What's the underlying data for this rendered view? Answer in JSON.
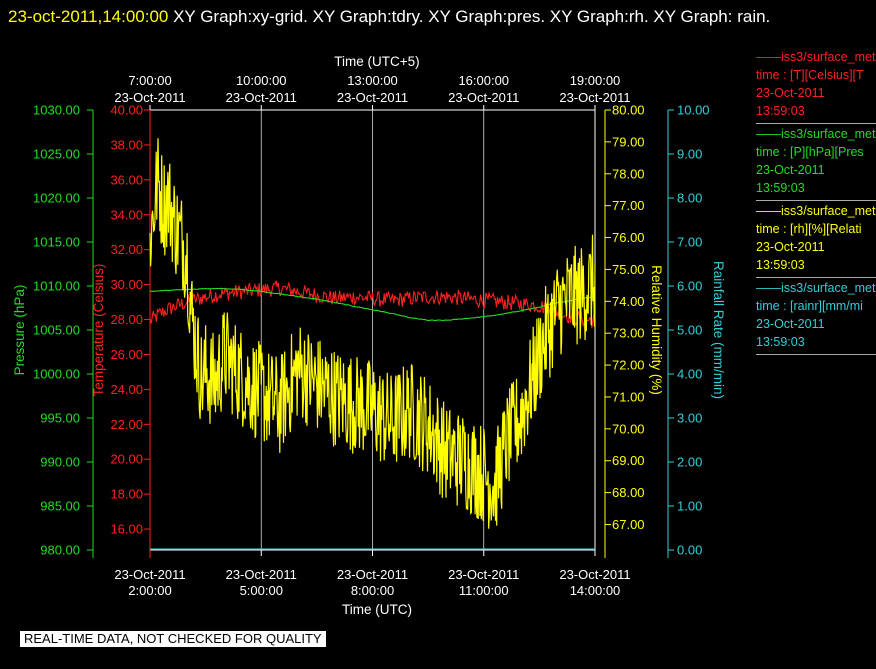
{
  "header": {
    "date_time": "23-oct-2011,14:00:00",
    "title_rest": "  XY Graph:xy-grid.  XY Graph:tdry.  XY Graph:pres.  XY Graph:rh.  XY Graph: rain."
  },
  "footer_note": "REAL-TIME DATA, NOT CHECKED FOR QUALITY",
  "legend": [
    {
      "name": "——iss3/surface_met",
      "field": "time : [T][Celsius][T",
      "date": "23-Oct-2011",
      "time": "13:59:03",
      "color": "#ff2020"
    },
    {
      "name": "——iss3/surface_met",
      "field": "time : [P][hPa][Pres",
      "date": "23-Oct-2011",
      "time": "13:59:03",
      "color": "#22dd22"
    },
    {
      "name": "——iss3/surface_met",
      "field": "time : [rh][%][Relati",
      "date": "23-Oct-2011",
      "time": "13:59:03",
      "color": "#ffff00"
    },
    {
      "name": "——iss3/surface_met",
      "field": "time : [rainr][mm/mi",
      "date": "23-Oct-2011",
      "time": "13:59:03",
      "color": "#30d0d8"
    }
  ],
  "chart_data": {
    "type": "line",
    "x_bottom": {
      "label": "Time (UTC)",
      "ticks": [
        {
          "date": "23-Oct-2011",
          "time": "2:00:00"
        },
        {
          "date": "23-Oct-2011",
          "time": "5:00:00"
        },
        {
          "date": "23-Oct-2011",
          "time": "8:00:00"
        },
        {
          "date": "23-Oct-2011",
          "time": "11:00:00"
        },
        {
          "date": "23-Oct-2011",
          "time": "14:00:00"
        }
      ]
    },
    "x_top": {
      "label": "Time (UTC+5)",
      "ticks": [
        {
          "date": "23-Oct-2011",
          "time": "7:00:00"
        },
        {
          "date": "23-Oct-2011",
          "time": "10:00:00"
        },
        {
          "date": "23-Oct-2011",
          "time": "13:00:00"
        },
        {
          "date": "23-Oct-2011",
          "time": "16:00:00"
        },
        {
          "date": "23-Oct-2011",
          "time": "19:00:00"
        }
      ]
    },
    "x_range_hours_utc": [
      2,
      14
    ],
    "grid": true,
    "axes": {
      "pressure": {
        "label": "Pressure (hPa)",
        "range": [
          980,
          1030
        ],
        "ticks": [
          "980.00",
          "985.00",
          "990.00",
          "995.00",
          "1000.00",
          "1005.00",
          "1010.00",
          "1015.00",
          "1020.00",
          "1025.00",
          "1030.00"
        ],
        "color": "#22dd22"
      },
      "temperature": {
        "label": "Temperature (Celsius)",
        "range": [
          14.8,
          40
        ],
        "ticks": [
          "16.00",
          "18.00",
          "20.00",
          "22.00",
          "24.00",
          "26.00",
          "28.00",
          "30.00",
          "32.00",
          "34.00",
          "36.00",
          "38.00",
          "40.00"
        ],
        "color": "#ff2020"
      },
      "humidity": {
        "label": "Relative Humidity (%)",
        "range": [
          66.2,
          80
        ],
        "ticks": [
          "67.00",
          "68.00",
          "69.00",
          "70.00",
          "71.00",
          "72.00",
          "73.00",
          "74.00",
          "75.00",
          "76.00",
          "77.00",
          "78.00",
          "79.00",
          "80.00"
        ],
        "color": "#ffff00"
      },
      "rain": {
        "label": "Rainfall Rate (mm/min)",
        "range": [
          0,
          10
        ],
        "ticks": [
          "0.00",
          "1.00",
          "2.00",
          "3.00",
          "4.00",
          "5.00",
          "6.00",
          "7.00",
          "8.00",
          "9.00",
          "10.00"
        ],
        "color": "#30d0d8"
      }
    },
    "series": [
      {
        "key": "temperature",
        "x": [
          2,
          2.25,
          2.5,
          3,
          3.5,
          4,
          4.5,
          5,
          5.5,
          6,
          6.5,
          7,
          7.5,
          8,
          8.5,
          9,
          9.5,
          10,
          10.5,
          11,
          11.5,
          12,
          12.5,
          13,
          13.5,
          13.75,
          14
        ],
        "y": [
          27.9,
          28.3,
          28.6,
          29.0,
          29.3,
          29.5,
          29.6,
          29.7,
          29.8,
          29.6,
          29.4,
          29.2,
          29.3,
          29.2,
          29.1,
          29.2,
          29.3,
          29.3,
          29.2,
          29.1,
          29.0,
          28.9,
          28.8,
          28.4,
          28.1,
          28.0,
          27.9
        ]
      },
      {
        "key": "pressure",
        "x": [
          2,
          2.5,
          3,
          3.5,
          4,
          4.5,
          5,
          5.5,
          6,
          6.5,
          7,
          7.5,
          8,
          8.5,
          9,
          9.5,
          10,
          10.5,
          11,
          11.5,
          12,
          12.5,
          13,
          13.5,
          14
        ],
        "y": [
          1009.4,
          1009.5,
          1009.6,
          1009.7,
          1009.7,
          1009.6,
          1009.4,
          1009.1,
          1008.8,
          1008.5,
          1008.1,
          1007.7,
          1007.3,
          1006.9,
          1006.4,
          1006.1,
          1006.1,
          1006.3,
          1006.5,
          1006.8,
          1007.2,
          1007.6,
          1008.1,
          1008.5,
          1008.8
        ]
      },
      {
        "key": "humidity",
        "x": [
          2,
          2.1,
          2.2,
          2.3,
          2.4,
          2.5,
          2.7,
          2.9,
          3.0,
          3.1,
          3.25,
          3.4,
          3.5,
          3.75,
          4,
          4.5,
          5,
          5.5,
          6,
          6.5,
          7,
          7.5,
          8,
          8.5,
          9,
          9.5,
          10,
          10.5,
          11,
          11.3,
          11.6,
          12,
          12.3,
          12.6,
          13,
          13.3,
          13.6,
          14
        ],
        "y": [
          76.0,
          76.8,
          77.8,
          77.3,
          77.0,
          77.2,
          76.3,
          75.8,
          75.4,
          73.8,
          72.5,
          71.5,
          71.8,
          71.4,
          72.3,
          71.6,
          71.1,
          70.7,
          71.9,
          71.4,
          71.0,
          70.8,
          70.6,
          70.2,
          70.6,
          70.1,
          69.2,
          69.0,
          68.6,
          68.2,
          69.5,
          70.4,
          71.5,
          72.7,
          73.8,
          74.1,
          74.2,
          74.6
        ]
      },
      {
        "key": "rain",
        "x": [
          2,
          14
        ],
        "y": [
          0.02,
          0.02
        ]
      }
    ]
  }
}
